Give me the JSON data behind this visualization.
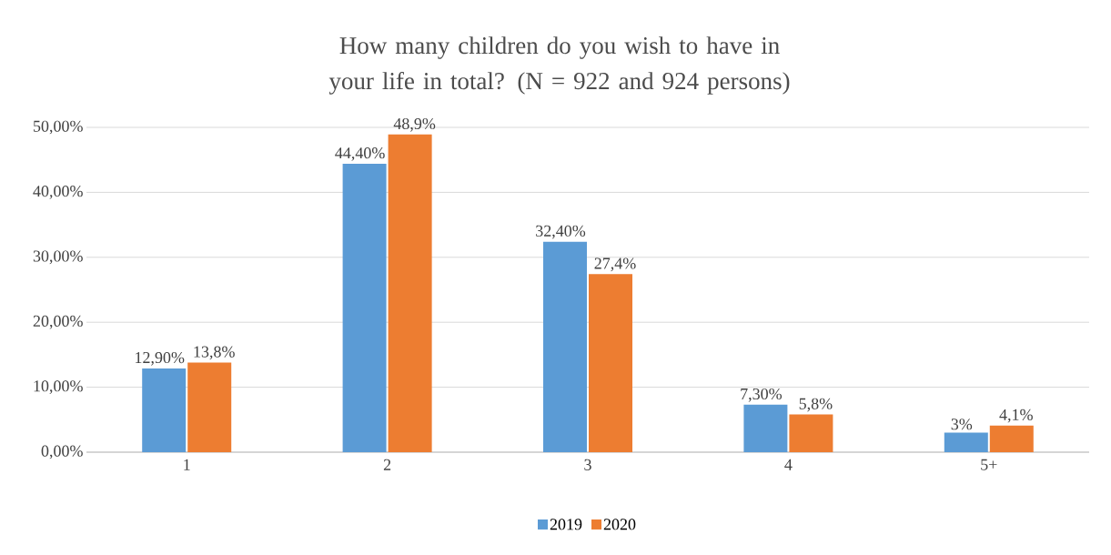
{
  "chart_data": {
    "type": "bar",
    "title": "How many children do you wish to have in your life in total? (N = 922 and 924 persons)",
    "categories": [
      "1",
      "2",
      "3",
      "4",
      "5+"
    ],
    "series": [
      {
        "name": "2019",
        "color": "#5b9bd5",
        "values": [
          12.9,
          44.4,
          32.4,
          7.3,
          3
        ],
        "value_labels": [
          "12,90%",
          "44,40%",
          "32,40%",
          "7,30%",
          "3%"
        ]
      },
      {
        "name": "2020",
        "color": "#ed7d31",
        "values": [
          13.8,
          48.9,
          27.4,
          5.8,
          4.1
        ],
        "value_labels": [
          "13,8%",
          "48,9%",
          "27,4%",
          "5,8%",
          "4,1%"
        ]
      }
    ],
    "ylim": [
      0,
      50
    ],
    "yticks": [
      {
        "value": 0,
        "label": "0,00%"
      },
      {
        "value": 10,
        "label": "10,00%"
      },
      {
        "value": 20,
        "label": "20,00%"
      },
      {
        "value": 30,
        "label": "30,00%"
      },
      {
        "value": 40,
        "label": "40,00%"
      },
      {
        "value": 50,
        "label": "50,00%"
      }
    ],
    "grid": "y",
    "legend": "bottom"
  }
}
